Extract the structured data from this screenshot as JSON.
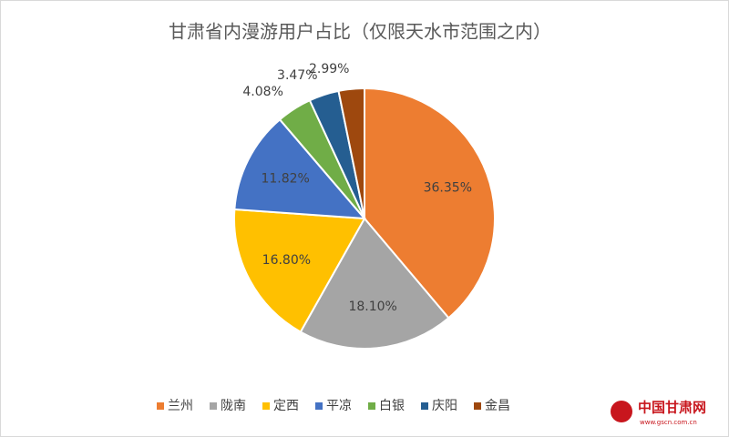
{
  "chart_data": {
    "type": "pie",
    "title": "甘肃省内漫游用户占比（仅限天水市范围之内）",
    "categories": [
      "兰州",
      "陇南",
      "定西",
      "平凉",
      "白银",
      "庆阳",
      "金昌"
    ],
    "values": [
      36.35,
      18.1,
      16.8,
      11.82,
      4.08,
      3.47,
      2.99
    ],
    "value_labels": [
      "36.35%",
      "18.10%",
      "16.80%",
      "11.82%",
      "4.08%",
      "3.47%",
      "2.99%"
    ],
    "colors": [
      "#ED7D31",
      "#A5A5A5",
      "#FFC000",
      "#4472C4",
      "#70AD47",
      "#255E91",
      "#9E480E"
    ],
    "legend": "bottom",
    "watermark": {
      "name": "中国甘肃网",
      "url": "www.gscn.com.cn"
    }
  }
}
